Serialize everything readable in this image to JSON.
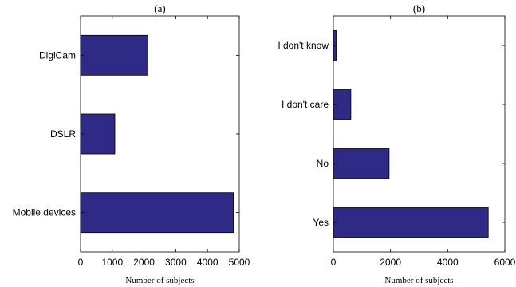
{
  "chart_data": [
    {
      "type": "bar",
      "orientation": "horizontal",
      "title": "(a)",
      "xlabel": "Number of subjects",
      "ylabel": "",
      "categories": [
        "Mobile devices",
        "DSLR",
        "DigiCam"
      ],
      "values": [
        4820,
        1080,
        2120
      ],
      "xlim": [
        0,
        5000
      ],
      "xticks": [
        "0",
        "1000",
        "2000",
        "3000",
        "4000",
        "5000"
      ],
      "grid": false,
      "bar_color": "#2e2a86"
    },
    {
      "type": "bar",
      "orientation": "horizontal",
      "title": "(b)",
      "xlabel": "Number of subjects",
      "ylabel": "",
      "categories": [
        "Yes",
        "No",
        "I don't care",
        "I don't know"
      ],
      "values": [
        5420,
        1950,
        610,
        110
      ],
      "xlim": [
        0,
        6000
      ],
      "xticks": [
        "0",
        "2000",
        "4000",
        "6000"
      ],
      "grid": false,
      "bar_color": "#2e2a86"
    }
  ]
}
